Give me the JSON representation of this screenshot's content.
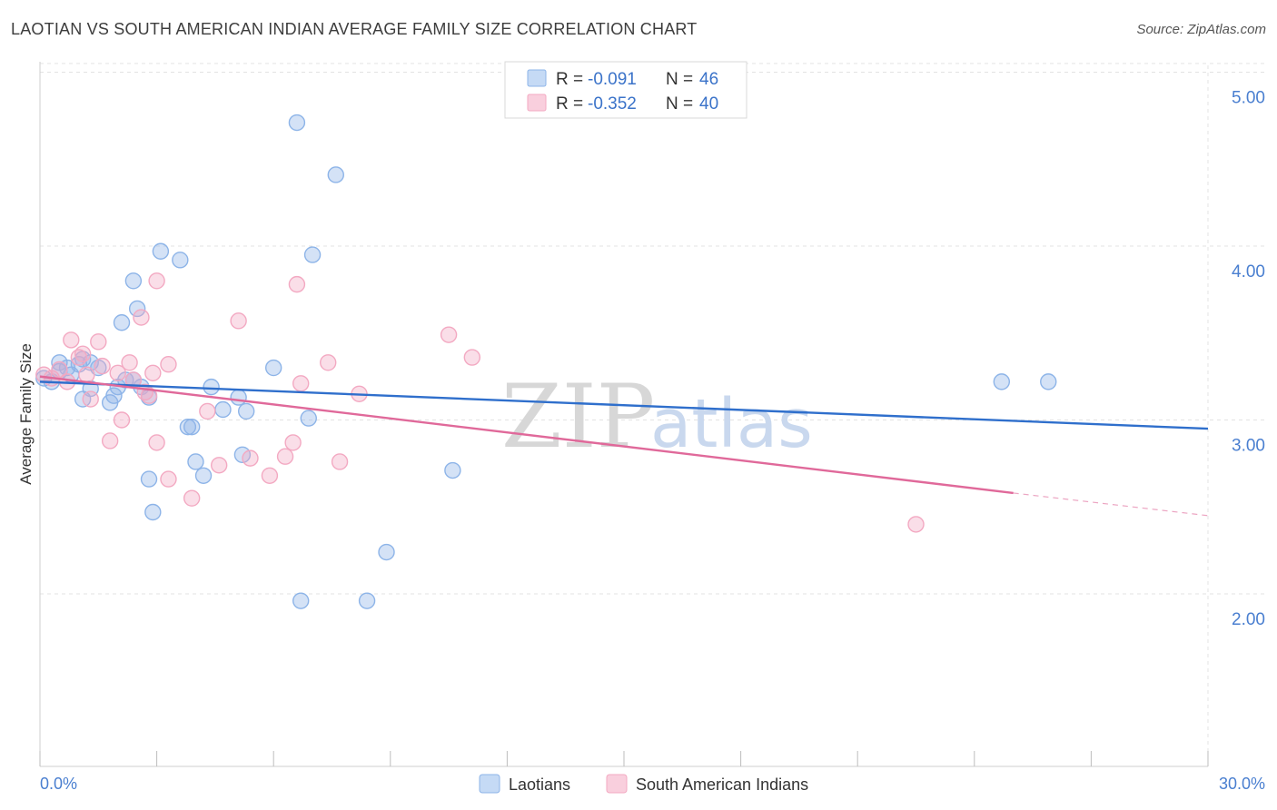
{
  "header": {
    "title": "LAOTIAN VS SOUTH AMERICAN INDIAN AVERAGE FAMILY SIZE CORRELATION CHART",
    "source": "Source: ZipAtlas.com"
  },
  "legend": {
    "r_label": "R =",
    "n_label": "N =",
    "series": [
      {
        "r": "-0.091",
        "n": "46"
      },
      {
        "r": "-0.352",
        "n": "40"
      }
    ]
  },
  "watermark": {
    "zip": "ZIP",
    "atlas": "atlas"
  },
  "chart_data": {
    "type": "scatter",
    "title": "LAOTIAN VS SOUTH AMERICAN INDIAN AVERAGE FAMILY SIZE CORRELATION CHART",
    "xlabel": "",
    "ylabel": "Average Family Size",
    "xlim": [
      0,
      30
    ],
    "ylim": [
      1.0,
      5.1
    ],
    "x_tick_labels": [
      "0.0%",
      "30.0%"
    ],
    "y_ticks": [
      2.0,
      3.0,
      4.0,
      5.0
    ],
    "y_tick_labels": [
      "2.00",
      "3.00",
      "4.00",
      "5.00"
    ],
    "grid": true,
    "legend_position": "top-center",
    "colors": {
      "laotians": "#8db4e8",
      "laotians_line": "#2f6fcc",
      "sai": "#f3a9c2",
      "sai_line": "#e0699a",
      "tick": "#4a7fd0"
    },
    "series": [
      {
        "name": "Laotians",
        "points": [
          [
            0.1,
            3.24
          ],
          [
            0.3,
            3.22
          ],
          [
            0.5,
            3.28
          ],
          [
            0.5,
            3.33
          ],
          [
            0.7,
            3.3
          ],
          [
            0.8,
            3.26
          ],
          [
            1.0,
            3.32
          ],
          [
            1.1,
            3.35
          ],
          [
            1.1,
            3.12
          ],
          [
            1.3,
            3.18
          ],
          [
            1.3,
            3.33
          ],
          [
            1.5,
            3.3
          ],
          [
            1.8,
            3.1
          ],
          [
            1.9,
            3.14
          ],
          [
            2.0,
            3.19
          ],
          [
            2.1,
            3.56
          ],
          [
            2.2,
            3.23
          ],
          [
            2.4,
            3.23
          ],
          [
            2.4,
            3.8
          ],
          [
            2.5,
            3.64
          ],
          [
            2.6,
            3.19
          ],
          [
            2.8,
            3.13
          ],
          [
            2.8,
            2.66
          ],
          [
            2.9,
            2.47
          ],
          [
            3.1,
            3.97
          ],
          [
            3.6,
            3.92
          ],
          [
            3.8,
            2.96
          ],
          [
            3.9,
            2.96
          ],
          [
            4.0,
            2.76
          ],
          [
            4.2,
            2.68
          ],
          [
            4.4,
            3.19
          ],
          [
            4.7,
            3.06
          ],
          [
            5.1,
            3.13
          ],
          [
            5.2,
            2.8
          ],
          [
            5.3,
            3.05
          ],
          [
            6.0,
            3.3
          ],
          [
            6.6,
            4.71
          ],
          [
            6.7,
            1.96
          ],
          [
            6.9,
            3.01
          ],
          [
            7.0,
            3.95
          ],
          [
            7.6,
            4.41
          ],
          [
            8.4,
            1.96
          ],
          [
            8.9,
            2.24
          ],
          [
            10.6,
            2.71
          ],
          [
            24.7,
            3.22
          ],
          [
            25.9,
            3.22
          ]
        ],
        "trend": {
          "x": [
            0,
            30
          ],
          "y": [
            3.22,
            2.95
          ]
        }
      },
      {
        "name": "South American Indians",
        "points": [
          [
            0.1,
            3.26
          ],
          [
            0.3,
            3.24
          ],
          [
            0.5,
            3.29
          ],
          [
            0.7,
            3.22
          ],
          [
            0.8,
            3.46
          ],
          [
            1.0,
            3.36
          ],
          [
            1.1,
            3.38
          ],
          [
            1.2,
            3.26
          ],
          [
            1.3,
            3.12
          ],
          [
            1.5,
            3.45
          ],
          [
            1.6,
            3.31
          ],
          [
            1.8,
            2.88
          ],
          [
            2.0,
            3.27
          ],
          [
            2.1,
            3.0
          ],
          [
            2.3,
            3.33
          ],
          [
            2.4,
            3.23
          ],
          [
            2.6,
            3.59
          ],
          [
            2.7,
            3.16
          ],
          [
            2.8,
            3.14
          ],
          [
            2.9,
            3.27
          ],
          [
            3.0,
            3.8
          ],
          [
            3.0,
            2.87
          ],
          [
            3.3,
            2.66
          ],
          [
            3.3,
            3.32
          ],
          [
            3.9,
            2.55
          ],
          [
            4.3,
            3.05
          ],
          [
            4.6,
            2.74
          ],
          [
            5.1,
            3.57
          ],
          [
            5.4,
            2.78
          ],
          [
            5.9,
            2.68
          ],
          [
            6.3,
            2.79
          ],
          [
            6.5,
            2.87
          ],
          [
            6.6,
            3.78
          ],
          [
            6.7,
            3.21
          ],
          [
            7.4,
            3.33
          ],
          [
            7.7,
            2.76
          ],
          [
            8.2,
            3.15
          ],
          [
            10.5,
            3.49
          ],
          [
            11.1,
            3.36
          ],
          [
            22.5,
            2.4
          ]
        ],
        "trend": {
          "x": [
            0,
            25
          ],
          "y": [
            3.25,
            2.58
          ]
        },
        "trend_dashed": {
          "x": [
            25,
            30
          ],
          "y": [
            2.58,
            2.45
          ]
        }
      }
    ]
  },
  "bottom_legend": {
    "items": [
      {
        "label": "Laotians"
      },
      {
        "label": "South American Indians"
      }
    ]
  }
}
